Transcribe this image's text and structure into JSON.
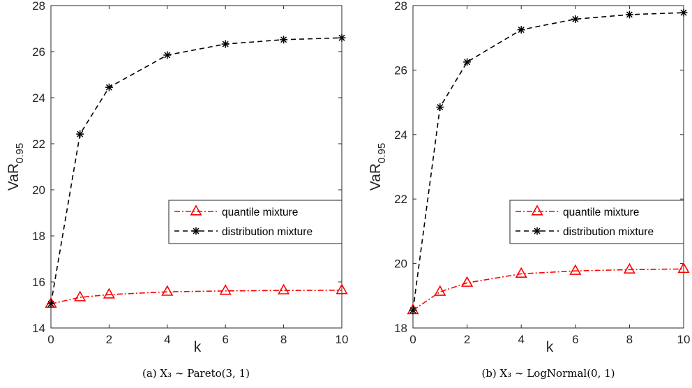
{
  "chart_data": [
    {
      "type": "line",
      "caption": "(a)  X₃ ∼ Pareto(3, 1)",
      "xlabel": "k",
      "ylabel": "VaR",
      "ylabel_sub": "0.95",
      "xlim": [
        0,
        10
      ],
      "ylim": [
        14,
        28
      ],
      "xticks": [
        "0",
        "2",
        "4",
        "6",
        "8",
        "10"
      ],
      "yticks": [
        "14",
        "16",
        "18",
        "20",
        "22",
        "24",
        "26",
        "28"
      ],
      "x": [
        0,
        1,
        2,
        4,
        6,
        8,
        10
      ],
      "grid": false,
      "legend_position": "right-middle",
      "series": [
        {
          "name": "quantile mixture",
          "color": "#ff0000",
          "marker": "triangle",
          "line": "dash-dot",
          "values": [
            15.05,
            15.33,
            15.45,
            15.57,
            15.61,
            15.63,
            15.64
          ]
        },
        {
          "name": "distribution mixture",
          "color": "#000000",
          "marker": "asterisk",
          "line": "dashed",
          "values": [
            15.05,
            22.42,
            24.45,
            25.85,
            26.33,
            26.52,
            26.6
          ]
        }
      ]
    },
    {
      "type": "line",
      "caption": "(b)  X₃ ∼ LogNormal(0, 1)",
      "xlabel": "k",
      "ylabel": "VaR",
      "ylabel_sub": "0.95",
      "xlim": [
        0,
        10
      ],
      "ylim": [
        18,
        28
      ],
      "xticks": [
        "0",
        "2",
        "4",
        "6",
        "8",
        "10"
      ],
      "yticks": [
        "18",
        "20",
        "22",
        "24",
        "26",
        "28"
      ],
      "x": [
        0,
        1,
        2,
        4,
        6,
        8,
        10
      ],
      "grid": false,
      "legend_position": "right-middle",
      "series": [
        {
          "name": "quantile mixture",
          "color": "#ff0000",
          "marker": "triangle",
          "line": "dash-dot",
          "values": [
            18.55,
            19.12,
            19.4,
            19.68,
            19.77,
            19.81,
            19.83
          ]
        },
        {
          "name": "distribution mixture",
          "color": "#000000",
          "marker": "asterisk",
          "line": "dashed",
          "values": [
            18.55,
            24.85,
            26.25,
            27.25,
            27.58,
            27.72,
            27.78
          ]
        }
      ]
    }
  ]
}
